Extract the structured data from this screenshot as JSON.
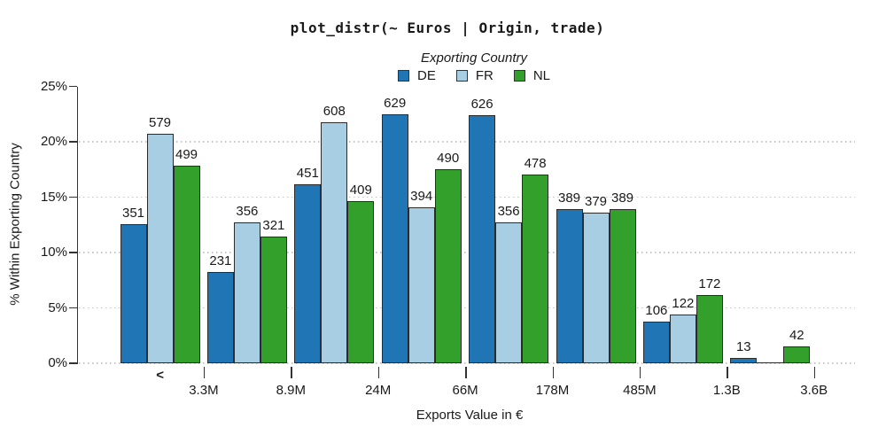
{
  "title": "plot_distr(~ Euros | Origin, trade)",
  "legend": {
    "title": "Exporting Country",
    "entries": [
      {
        "label": "DE",
        "color": "#2076b4"
      },
      {
        "label": "FR",
        "color": "#a8cee3"
      },
      {
        "label": "NL",
        "color": "#33a02c"
      }
    ]
  },
  "y_axis": {
    "label": "% Within Exporting Country",
    "tick_labels": [
      "0%",
      "5%",
      "10%",
      "15%",
      "20%",
      "25%"
    ],
    "tick_percents": [
      0,
      5,
      10,
      15,
      20,
      25
    ],
    "grid_percents": [
      0,
      5,
      10,
      15,
      20
    ]
  },
  "x_axis": {
    "label": "Exports Value in €",
    "first_bin_label": "<",
    "tick_labels": [
      "3.3M",
      "8.9M",
      "24M",
      "66M",
      "178M",
      "485M",
      "1.3B",
      "3.6B"
    ]
  },
  "chart_data": {
    "type": "bar",
    "title": "plot_distr(~ Euros | Origin, trade)",
    "xlabel": "Exports Value in €",
    "ylabel": "% Within Exporting Country",
    "ylim": [
      0,
      25
    ],
    "grid": "horizontal dotted at 0,5,10,15,20 percent",
    "legend_position": "top-center",
    "bin_upper_bound_labels": [
      "3.3M",
      "8.9M",
      "24M",
      "66M",
      "178M",
      "485M",
      "1.3B",
      "3.6B"
    ],
    "note": "bar height = count / country total (percent within exporting country); count labels shown above bars",
    "series": [
      {
        "name": "DE",
        "color": "#2076b4",
        "counts": [
          351,
          231,
          451,
          629,
          626,
          389,
          106,
          13
        ]
      },
      {
        "name": "FR",
        "color": "#a8cee3",
        "counts": [
          579,
          356,
          608,
          394,
          356,
          379,
          122,
          0
        ]
      },
      {
        "name": "NL",
        "color": "#33a02c",
        "counts": [
          499,
          321,
          409,
          490,
          478,
          389,
          172,
          42
        ]
      }
    ]
  },
  "colors": {
    "axis": "#333333",
    "gridline": "#c6c6c6",
    "bar_outline": "#2b2b2b",
    "text": "#1a1a1a",
    "background": "#ffffff"
  }
}
